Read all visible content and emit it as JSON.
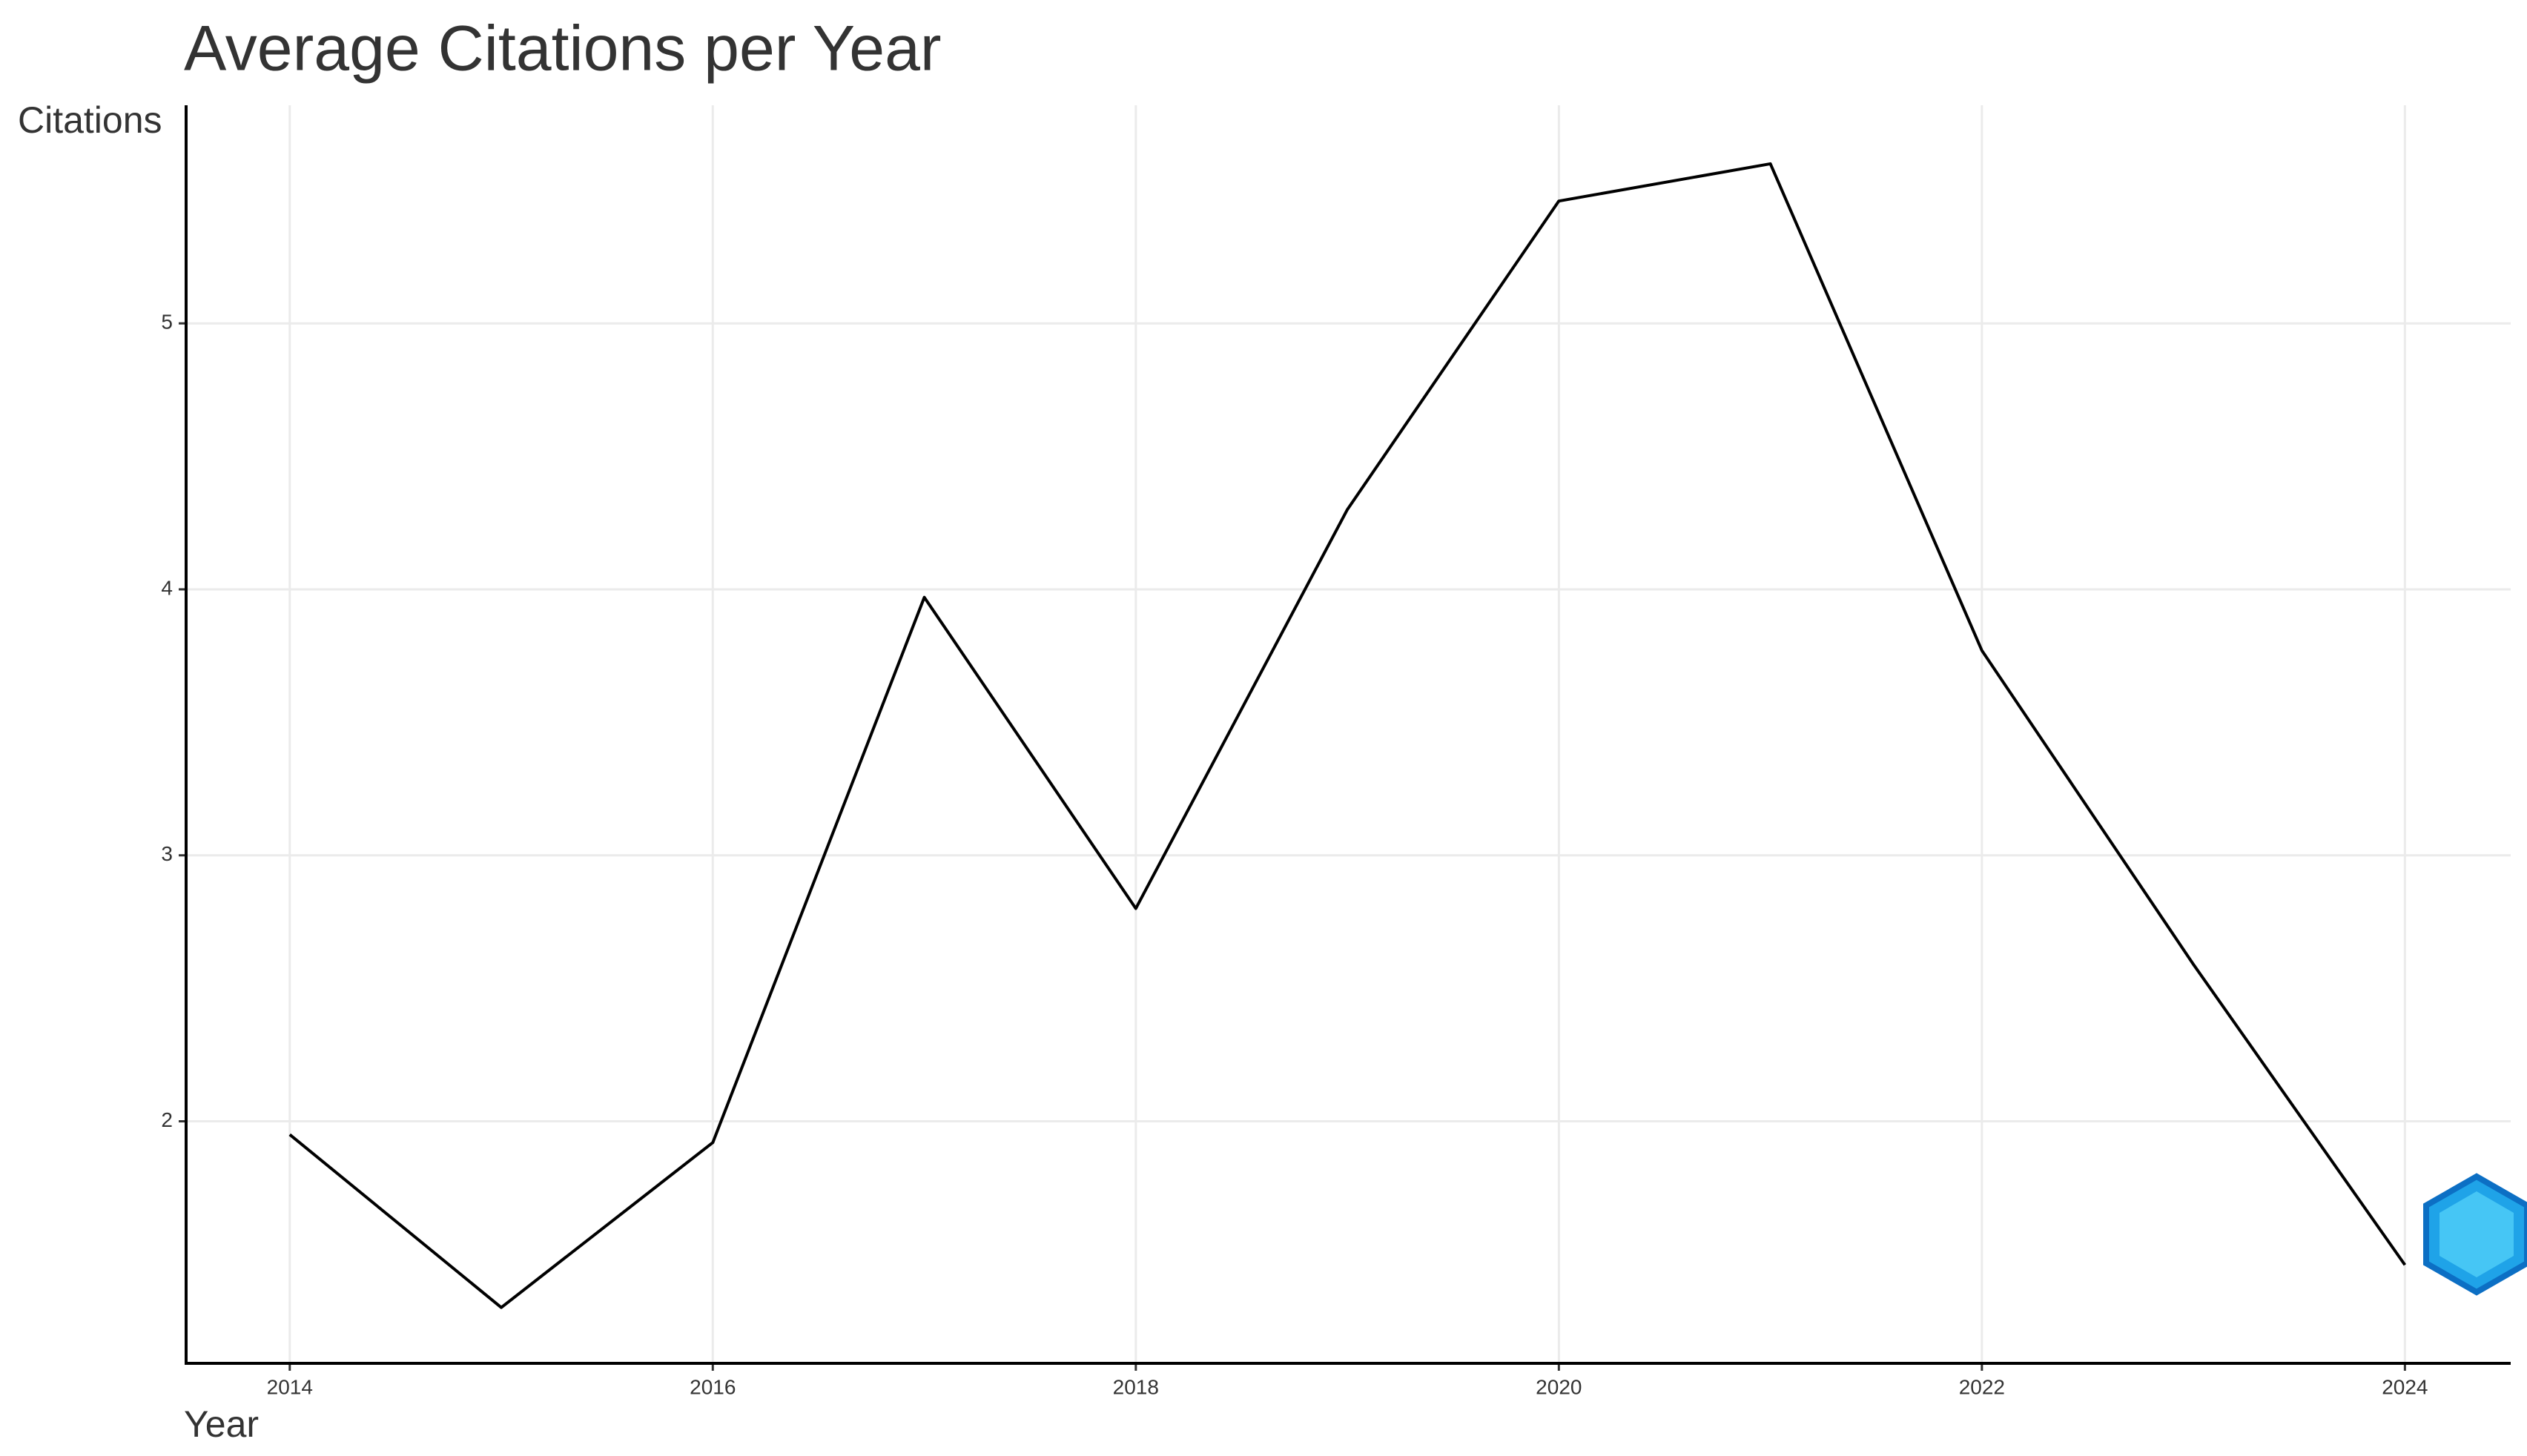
{
  "chart_data": {
    "type": "line",
    "title": "Average Citations per Year",
    "x_label": "Year",
    "y_label": "Citations",
    "x": [
      2014,
      2015,
      2016,
      2017,
      2018,
      2019,
      2020,
      2021,
      2022,
      2023,
      2024
    ],
    "values": [
      1.95,
      1.3,
      1.92,
      3.97,
      2.8,
      4.3,
      5.46,
      5.6,
      3.77,
      2.59,
      1.46
    ],
    "color": "#000000",
    "xlim": [
      2013.51,
      2024.5
    ],
    "xticks": [
      2014,
      2016,
      2018,
      2020,
      2022,
      2024
    ],
    "ylim": [
      1.09,
      5.82
    ],
    "yticks": [
      2,
      3,
      4,
      5
    ],
    "grid": true
  }
}
